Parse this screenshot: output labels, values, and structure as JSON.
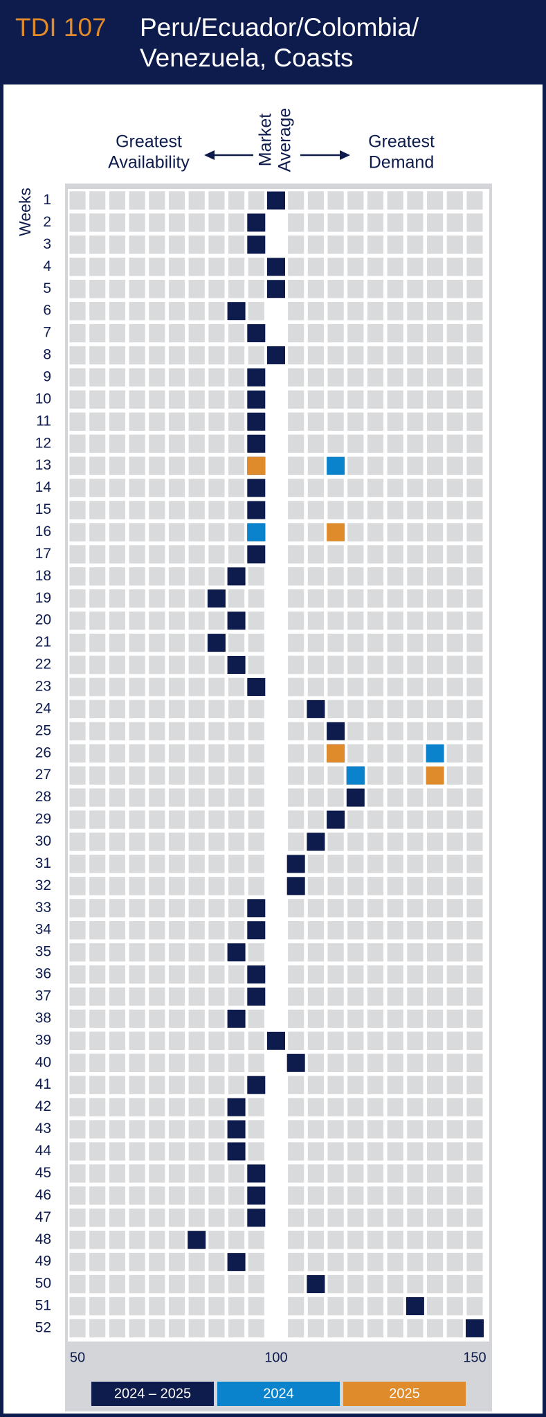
{
  "chart_data": {
    "type": "dot",
    "code": "TDI 107",
    "title": [
      "Peru/Ecuador/Colombia/",
      "Venezuela, Coasts"
    ],
    "annotations": {
      "left": [
        "Greatest",
        "Availability"
      ],
      "center": [
        "Market",
        "Average"
      ],
      "right": [
        "Greatest",
        "Demand"
      ]
    },
    "y_label": "Weeks",
    "categories": [
      "1",
      "2",
      "3",
      "4",
      "5",
      "6",
      "7",
      "8",
      "9",
      "10",
      "11",
      "12",
      "13",
      "14",
      "15",
      "16",
      "17",
      "18",
      "19",
      "20",
      "21",
      "22",
      "23",
      "24",
      "25",
      "26",
      "27",
      "28",
      "29",
      "30",
      "31",
      "32",
      "33",
      "34",
      "35",
      "36",
      "37",
      "38",
      "39",
      "40",
      "41",
      "42",
      "43",
      "44",
      "45",
      "46",
      "47",
      "48",
      "49",
      "50",
      "51",
      "52"
    ],
    "xlim": [
      50,
      150
    ],
    "xticks": [
      50,
      100,
      150
    ],
    "grid_step": 5,
    "reference": 100,
    "series": [
      {
        "name": "2024 – 2025",
        "color": "#0e1b4d",
        "values": [
          100,
          95,
          95,
          100,
          100,
          90,
          95,
          100,
          95,
          95,
          95,
          95,
          95,
          95,
          95,
          95,
          95,
          90,
          85,
          90,
          85,
          90,
          95,
          110,
          115,
          115,
          120,
          120,
          115,
          110,
          105,
          105,
          95,
          95,
          90,
          95,
          95,
          90,
          100,
          105,
          95,
          90,
          90,
          90,
          95,
          95,
          95,
          80,
          90,
          110,
          135,
          150
        ]
      },
      {
        "name": "2024",
        "color": "#0b83cc",
        "values": [
          null,
          null,
          null,
          null,
          null,
          null,
          null,
          null,
          null,
          null,
          null,
          null,
          115,
          null,
          null,
          95,
          null,
          null,
          null,
          null,
          null,
          null,
          null,
          null,
          null,
          140,
          120,
          null,
          null,
          null,
          null,
          null,
          null,
          null,
          null,
          null,
          null,
          null,
          null,
          null,
          null,
          null,
          null,
          null,
          null,
          null,
          null,
          null,
          null,
          null,
          null,
          null
        ]
      },
      {
        "name": "2025",
        "color": "#df8a2b",
        "values": [
          null,
          null,
          null,
          null,
          null,
          null,
          null,
          null,
          null,
          null,
          null,
          null,
          95,
          null,
          null,
          115,
          null,
          null,
          null,
          null,
          null,
          null,
          null,
          null,
          null,
          115,
          140,
          null,
          null,
          null,
          null,
          null,
          null,
          null,
          null,
          null,
          null,
          null,
          null,
          null,
          null,
          null,
          null,
          null,
          null,
          null,
          null,
          null,
          null,
          null,
          null,
          null
        ]
      }
    ]
  }
}
